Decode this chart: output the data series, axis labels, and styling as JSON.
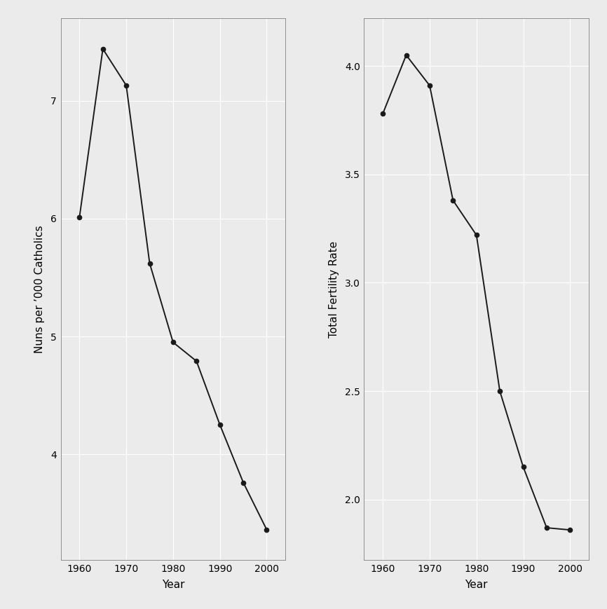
{
  "left": {
    "years": [
      1960,
      1965,
      1970,
      1975,
      1980,
      1985,
      1990,
      1995,
      2000
    ],
    "values": [
      6.01,
      7.44,
      7.13,
      5.62,
      4.95,
      4.79,
      4.25,
      3.76,
      3.36
    ],
    "ylabel": "Nuns per ’000 Catholics",
    "xlabel": "Year",
    "ylim": [
      3.1,
      7.7
    ],
    "yticks": [
      4.0,
      5.0,
      6.0,
      7.0
    ],
    "xticks": [
      1960,
      1970,
      1980,
      1990,
      2000
    ]
  },
  "right": {
    "years": [
      1960,
      1965,
      1970,
      1975,
      1980,
      1985,
      1990,
      1995,
      2000
    ],
    "values": [
      3.78,
      4.05,
      3.91,
      3.38,
      3.22,
      2.5,
      2.15,
      1.87,
      1.86
    ],
    "ylabel": "Total Fertility Rate",
    "xlabel": "Year",
    "ylim": [
      1.72,
      4.22
    ],
    "yticks": [
      2.0,
      2.5,
      3.0,
      3.5,
      4.0
    ],
    "xticks": [
      1960,
      1970,
      1980,
      1990,
      2000
    ]
  },
  "background_color": "#ebebeb",
  "plot_bg_color": "#ebebeb",
  "line_color": "#1a1a1a",
  "marker": "o",
  "markersize": 4.5,
  "linewidth": 1.4,
  "grid_color": "#ffffff",
  "grid_linewidth": 0.8,
  "tick_fontsize": 10,
  "label_fontsize": 11,
  "spine_color": "#808080",
  "spine_linewidth": 0.6
}
